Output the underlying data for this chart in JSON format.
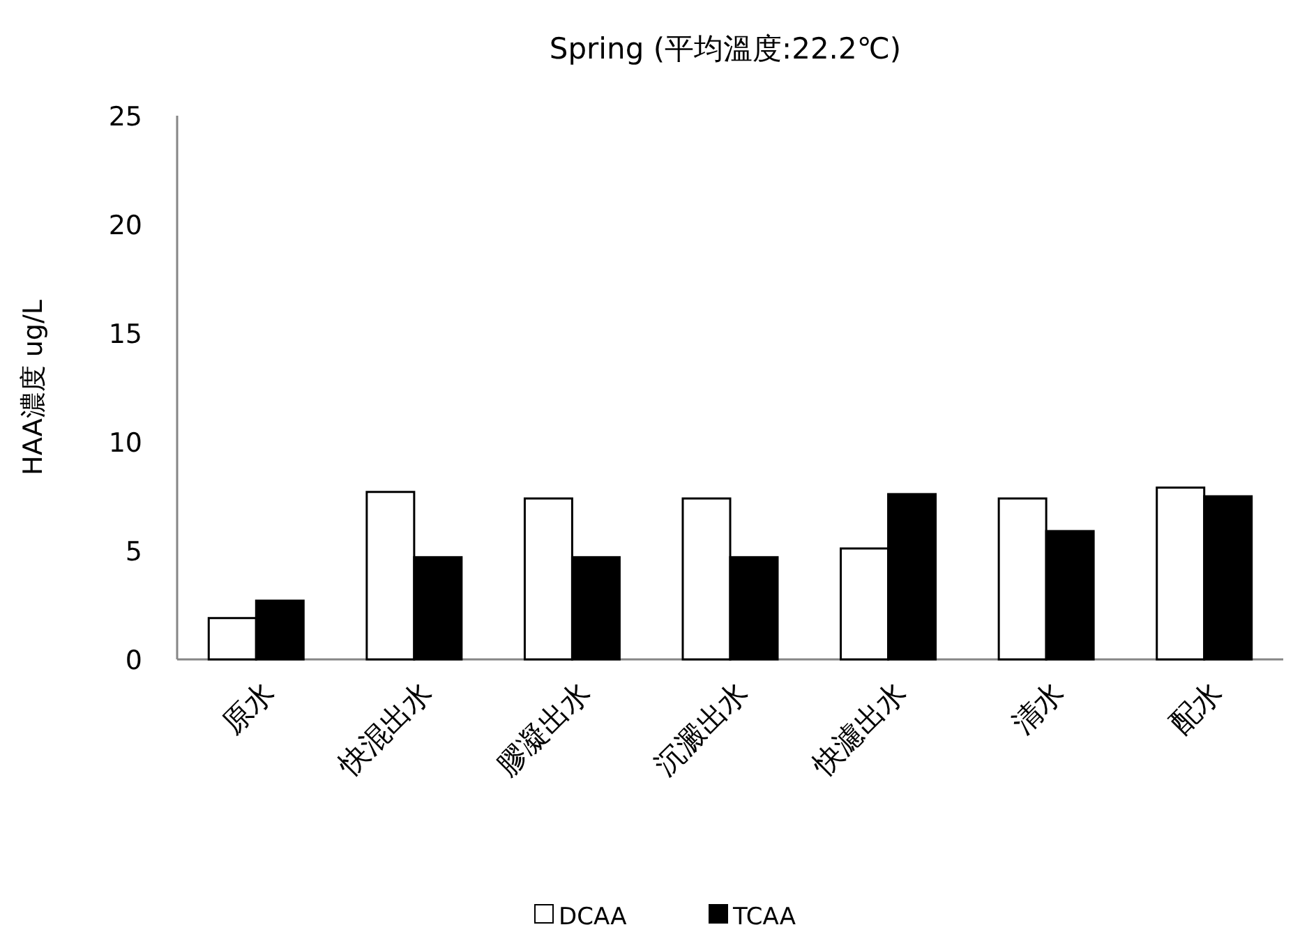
{
  "chart_data": {
    "type": "bar",
    "title": "Spring (平均溫度:22.2℃)",
    "ylabel": "HAA濃度 ug/L",
    "categories": [
      "原水",
      "快混出水",
      "膠凝出水",
      "沉澱出水",
      "快濾出水",
      "清水",
      "配水"
    ],
    "series": [
      {
        "name": "DCAA",
        "color": "#ffffff",
        "values": [
          1.9,
          7.7,
          7.4,
          7.4,
          5.1,
          7.4,
          7.9
        ]
      },
      {
        "name": "TCAA",
        "color": "#000000",
        "values": [
          2.7,
          4.7,
          4.7,
          4.7,
          7.6,
          5.9,
          7.5
        ]
      }
    ],
    "ylim": [
      0,
      25
    ],
    "yticks": [
      0,
      5,
      10,
      15,
      20,
      25
    ],
    "grid": false,
    "legend": "bottom"
  }
}
